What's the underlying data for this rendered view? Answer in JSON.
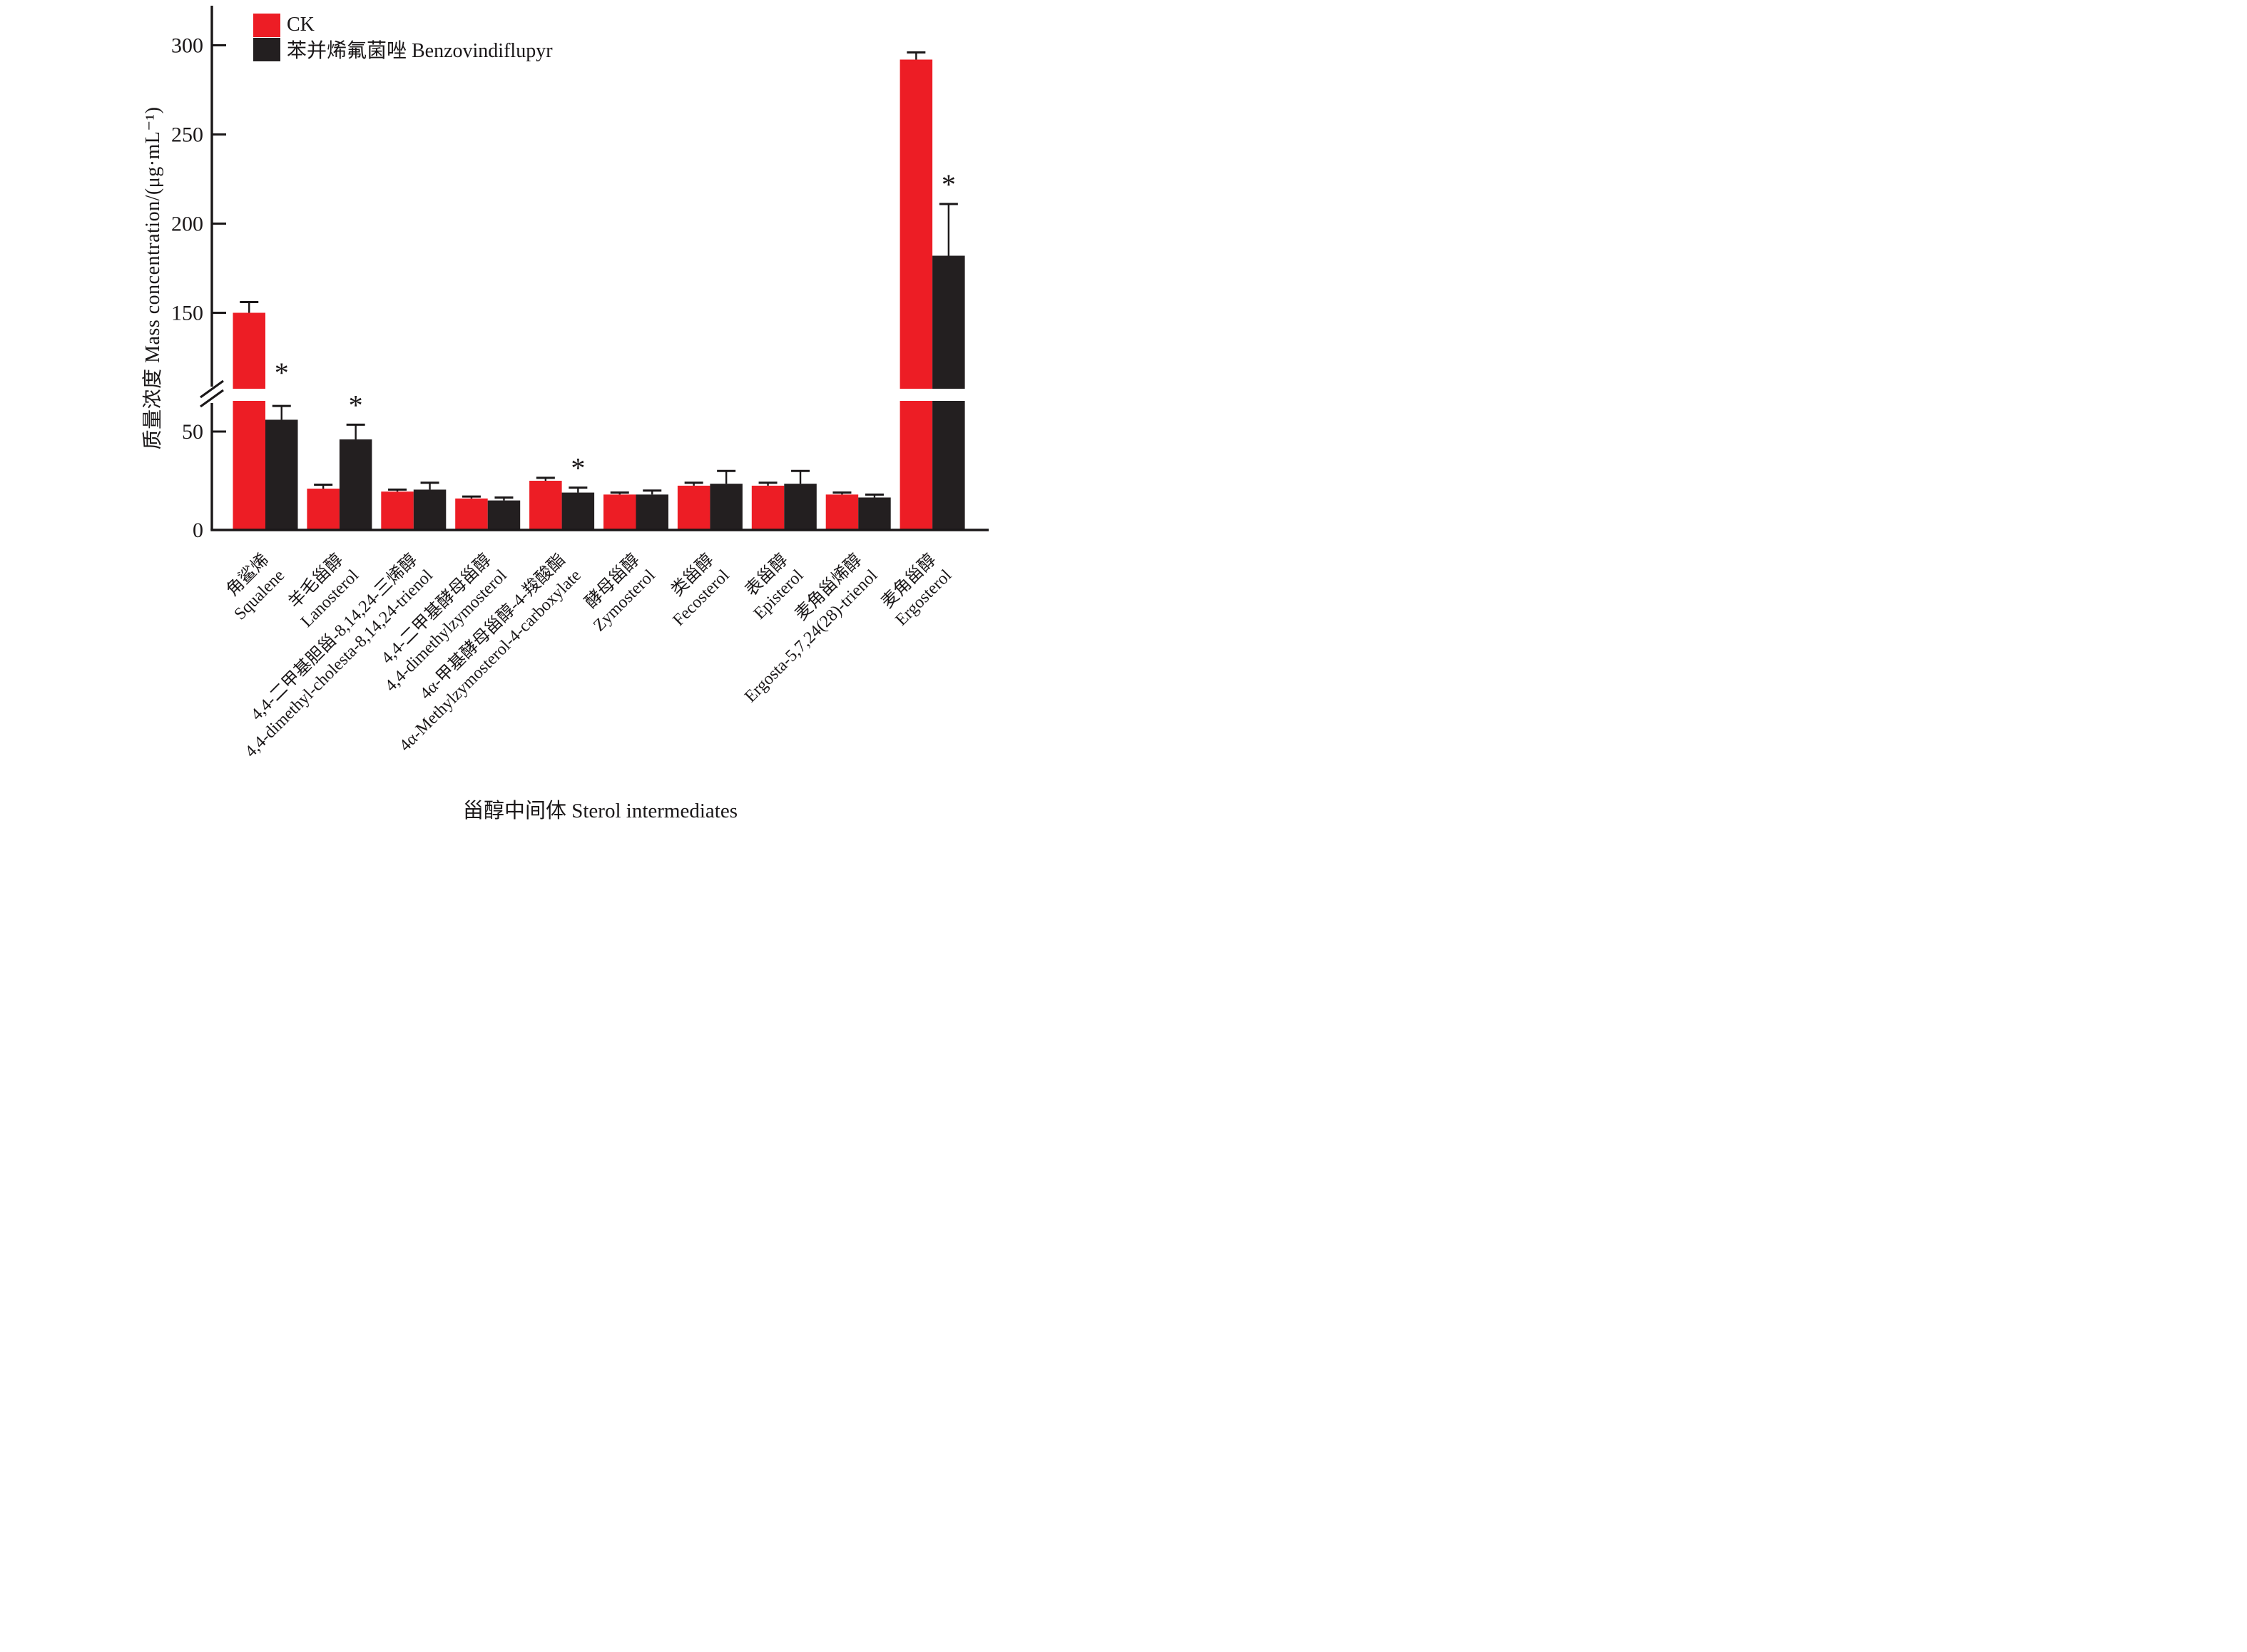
{
  "chart_data": {
    "type": "bar",
    "title": "",
    "xlabel": "甾醇中间体 Sterol intermediates",
    "ylabel": "质量浓度 Mass concentration/(μg·mL⁻¹)",
    "y_unit": "μg·mL⁻¹",
    "yticks": [
      0,
      50,
      150,
      200,
      250,
      300
    ],
    "ylim": [
      0,
      320
    ],
    "axis_break": {
      "present": true,
      "between": [
        65,
        100
      ]
    },
    "grid": false,
    "legend_position": "top-left-inside",
    "significance_marker": "*",
    "error_bars": "upper, SD",
    "categories": [
      {
        "zh": "角鲨烯",
        "en": "Squalene"
      },
      {
        "zh": "羊毛甾醇",
        "en": "Lanosterol"
      },
      {
        "zh": "4,4-二甲基胆甾-8,14,24-三烯醇",
        "en": "4,4-dimethyl-cholesta-8,14,24-trienol"
      },
      {
        "zh": "4,4-二甲基酵母甾醇",
        "en": "4,4-dimethylzymosterol"
      },
      {
        "zh": "4α-甲基酵母甾醇-4-羧酸酯",
        "en": "4α-Methylzymosterol-4-carboxylate"
      },
      {
        "zh": "酵母甾醇",
        "en": "Zymosterol"
      },
      {
        "zh": "类甾醇",
        "en": "Fecosterol"
      },
      {
        "zh": "表甾醇",
        "en": "Episterol"
      },
      {
        "zh": "麦角甾烯醇",
        "en": "Ergosta-5,7,24(28)-trienol"
      },
      {
        "zh": "麦角甾醇",
        "en": "Ergosterol"
      }
    ],
    "series": [
      {
        "name": "CK",
        "color": "#ED1D25",
        "values": [
          150,
          21,
          19.5,
          16,
          25,
          18,
          22.5,
          22.5,
          18,
          292
        ],
        "errors_plus": [
          6,
          2,
          1,
          1,
          1.5,
          1,
          1.5,
          1.5,
          1,
          4
        ],
        "significant": [
          false,
          false,
          false,
          false,
          false,
          false,
          false,
          false,
          false,
          false
        ]
      },
      {
        "name": "苯并烯氟菌唑 Benzovindiflupyr",
        "color": "#231F20",
        "values": [
          56,
          46,
          20.5,
          15,
          19,
          18,
          23.5,
          23.5,
          16.5,
          182
        ],
        "errors_plus": [
          7,
          7.5,
          3.5,
          1.5,
          2.5,
          2,
          6.5,
          6.5,
          1.5,
          29
        ],
        "significant": [
          true,
          true,
          false,
          false,
          true,
          false,
          false,
          false,
          false,
          true
        ]
      }
    ]
  },
  "legend": {
    "items": [
      {
        "label": "CK",
        "color": "#ED1D25"
      },
      {
        "label": "苯并烯氟菌唑 Benzovindiflupyr",
        "color": "#231F20"
      }
    ]
  }
}
